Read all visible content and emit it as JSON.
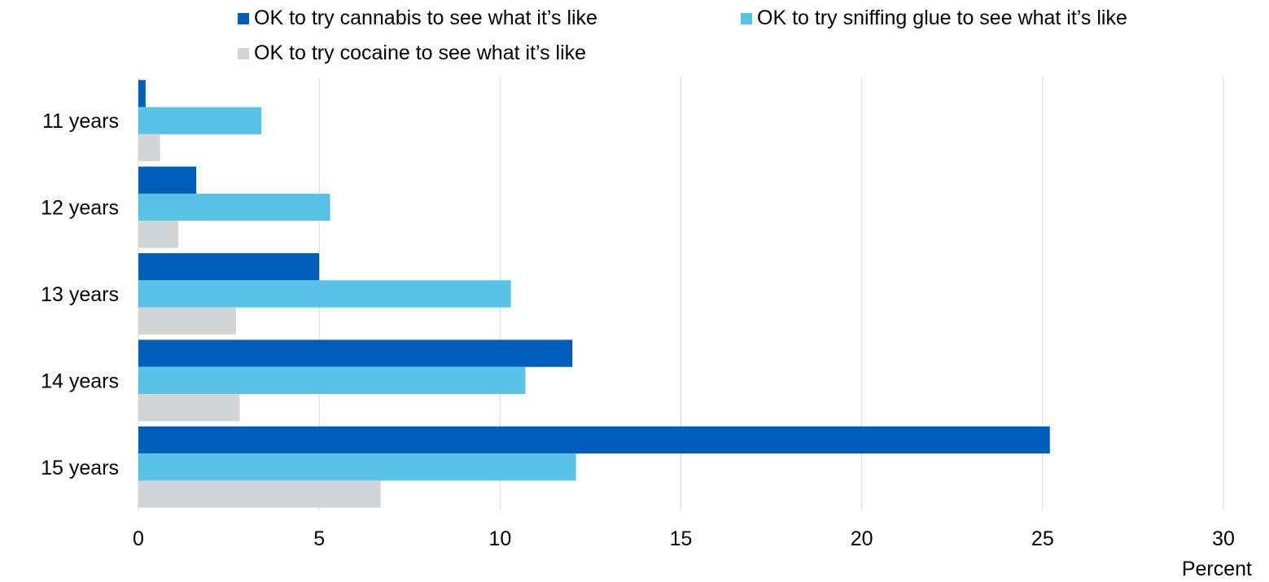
{
  "chart_data": {
    "type": "bar",
    "orientation": "horizontal",
    "categories": [
      "11 years",
      "12 years",
      "13 years",
      "14 years",
      "15 years"
    ],
    "series": [
      {
        "name": "OK to try cannabis to see what it’s like",
        "color": "#005EB8",
        "values": [
          0.2,
          1.6,
          5.0,
          12.0,
          25.2
        ]
      },
      {
        "name": "OK to try sniffing glue to see what it’s like",
        "color": "#5BC2E7",
        "values": [
          3.4,
          5.3,
          10.3,
          10.7,
          12.1
        ]
      },
      {
        "name": "OK to try cocaine to see what it’s like",
        "color": "#D1D5D5",
        "values": [
          0.6,
          1.1,
          2.7,
          2.8,
          6.7
        ]
      }
    ],
    "xlim": [
      0,
      30
    ],
    "xticks": [
      "0",
      "5",
      "10",
      "15",
      "20",
      "25",
      "30"
    ],
    "xlabel": "Percent",
    "grid": "vertical",
    "legend_position": "top"
  }
}
